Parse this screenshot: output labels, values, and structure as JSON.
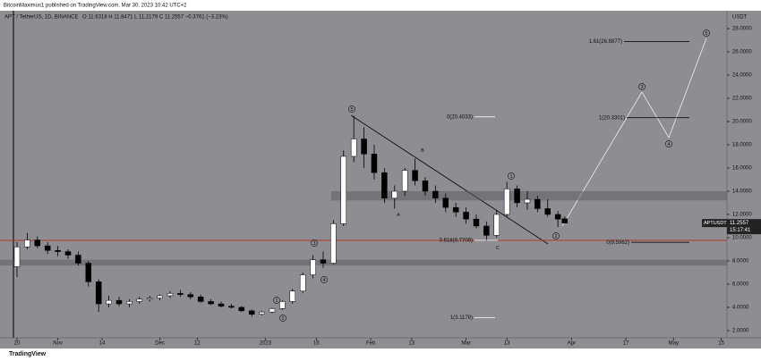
{
  "chart_data": {
    "type": "candlestick",
    "header": "BitcoinMaximus1 published on TradingView.com, Mar 30, 2023 10:42 UTC+2",
    "symbol": "APT / TetherUS, 1D, BINANCE",
    "ohlc": "O 11.6318 H 11.8471 L 11.2179 C 11.2557 −0.3761 (−3.23%)",
    "currency": "USDT",
    "x": [
      0,
      3,
      6,
      9,
      12,
      15,
      18,
      21,
      24,
      27,
      30,
      33,
      36,
      39,
      42,
      45,
      48,
      51,
      54,
      57,
      60,
      63,
      66,
      69,
      72,
      75,
      78,
      81,
      84,
      87,
      90,
      93,
      96,
      99,
      102,
      105,
      108,
      111,
      114,
      117,
      120,
      123,
      126,
      129,
      132,
      135,
      138,
      141,
      144,
      147,
      150,
      153,
      156,
      159,
      161
    ],
    "open": [
      7.5,
      9.2,
      9.8,
      9.3,
      8.9,
      8.8,
      8.5,
      7.8,
      6.2,
      4.3,
      4.6,
      4.3,
      4.5,
      4.7,
      4.8,
      5.0,
      5.2,
      5.1,
      4.9,
      4.5,
      4.3,
      4.1,
      4.0,
      3.7,
      3.4,
      3.6,
      3.9,
      4.5,
      5.4,
      6.8,
      8.1,
      7.8,
      11.2,
      17.0,
      18.5,
      17.2,
      15.6,
      13.4,
      14.0,
      15.8,
      14.9,
      14.0,
      13.4,
      12.6,
      12.2,
      11.6,
      11.0,
      10.2,
      12.0,
      14.2,
      13.0,
      13.3,
      12.5,
      12.0,
      11.6318
    ],
    "high": [
      9.6,
      10.4,
      10.1,
      9.6,
      9.3,
      9.0,
      8.8,
      8.0,
      6.4,
      5.0,
      4.9,
      4.7,
      4.9,
      5.0,
      5.1,
      5.4,
      5.5,
      5.3,
      5.1,
      4.7,
      4.5,
      4.3,
      4.1,
      3.8,
      3.7,
      4.0,
      4.6,
      5.6,
      7.0,
      8.5,
      8.8,
      11.5,
      17.5,
      20.5,
      19.5,
      18.0,
      16.0,
      14.5,
      16.0,
      16.8,
      15.2,
      14.5,
      13.8,
      13.0,
      12.6,
      12.0,
      11.4,
      12.4,
      14.8,
      14.5,
      14.0,
      13.6,
      13.3,
      12.3,
      11.8471
    ],
    "low": [
      6.6,
      9.0,
      9.1,
      8.6,
      8.4,
      8.2,
      7.6,
      5.8,
      3.6,
      4.0,
      4.1,
      4.0,
      4.3,
      4.5,
      4.6,
      4.8,
      4.9,
      4.7,
      4.4,
      4.2,
      4.0,
      3.9,
      3.6,
      3.2,
      3.3,
      3.5,
      3.8,
      4.3,
      5.2,
      6.5,
      7.4,
      7.7,
      11.0,
      16.5,
      16.0,
      15.0,
      13.0,
      12.5,
      13.6,
      14.5,
      13.6,
      13.0,
      12.2,
      11.8,
      11.2,
      10.8,
      9.7,
      10.0,
      11.8,
      12.6,
      12.4,
      12.2,
      11.8,
      10.9,
      11.2179
    ],
    "close": [
      9.2,
      9.8,
      9.3,
      8.9,
      8.8,
      8.5,
      7.8,
      6.2,
      4.3,
      4.6,
      4.3,
      4.5,
      4.7,
      4.8,
      5.0,
      5.2,
      5.1,
      4.9,
      4.5,
      4.3,
      4.1,
      4.0,
      3.7,
      3.4,
      3.6,
      3.9,
      4.5,
      5.4,
      6.8,
      8.1,
      7.8,
      11.2,
      17.0,
      18.5,
      17.2,
      15.6,
      13.4,
      14.0,
      15.8,
      14.9,
      14.0,
      13.4,
      12.6,
      12.2,
      11.6,
      11.0,
      10.2,
      12.0,
      14.2,
      13.0,
      13.3,
      12.5,
      12.0,
      11.6,
      11.2557
    ],
    "up_color": "#ffffff",
    "down_color": "#000000",
    "xlim": [
      -5,
      208.7
    ],
    "xticks": [
      {
        "value": 0,
        "label": "20"
      },
      {
        "value": 12,
        "label": "Nov"
      },
      {
        "value": 25,
        "label": "14"
      },
      {
        "value": 42,
        "label": "Dec"
      },
      {
        "value": 53,
        "label": "12"
      },
      {
        "value": 73,
        "label": "2023"
      },
      {
        "value": 88,
        "label": "16"
      },
      {
        "value": 104,
        "label": "Feb"
      },
      {
        "value": 116,
        "label": "13"
      },
      {
        "value": 132,
        "label": "Mar"
      },
      {
        "value": 144,
        "label": "13"
      },
      {
        "value": 163,
        "label": "Apr"
      },
      {
        "value": 179,
        "label": "17"
      },
      {
        "value": 193,
        "label": "May"
      },
      {
        "value": 207,
        "label": "15"
      }
    ],
    "ylim": [
      1.38,
      29.54
    ],
    "yticks": [
      {
        "value": 2,
        "label": "2.0000"
      },
      {
        "value": 4,
        "label": "4.0000"
      },
      {
        "value": 6,
        "label": "6.0000"
      },
      {
        "value": 8,
        "label": "8.0000"
      },
      {
        "value": 10,
        "label": "10.0000"
      },
      {
        "value": 12,
        "label": "12.0000"
      },
      {
        "value": 14,
        "label": "14.0000"
      },
      {
        "value": 16,
        "label": "16.0000"
      },
      {
        "value": 18,
        "label": "18.0000"
      },
      {
        "value": 20,
        "label": "20.0000"
      },
      {
        "value": 22,
        "label": "22.0000"
      },
      {
        "value": 24,
        "label": "24.0000"
      },
      {
        "value": 26,
        "label": "26.0000"
      },
      {
        "value": 28,
        "label": "28.0000"
      }
    ],
    "hline": {
      "value": 9.7709,
      "color": "#b03a2e"
    },
    "zones": [
      [
        13.2,
        14.0
      ],
      [
        7.6,
        8.1
      ]
    ],
    "fib_levels": [
      {
        "label": "1.61(26.8877)",
        "value": 26.8877
      },
      {
        "label": "0(20.4033)",
        "value": 20.4033
      },
      {
        "label": "1(20.3301)",
        "value": 20.3301
      },
      {
        "label": "0.618(9.7709)",
        "value": 9.7709
      },
      {
        "label": "0(9.5962)",
        "value": 9.5962
      },
      {
        "label": "1(3.1178)",
        "value": 3.1178
      }
    ],
    "wave_labels": [
      "5",
      "3",
      "4",
      "1",
      "2",
      "1",
      "2",
      "3",
      "4",
      "5",
      "A",
      "B",
      "C"
    ],
    "price_tag": {
      "symbol": "APTUSDT",
      "countdown": "15:17:41"
    },
    "brand": "TradingView"
  }
}
